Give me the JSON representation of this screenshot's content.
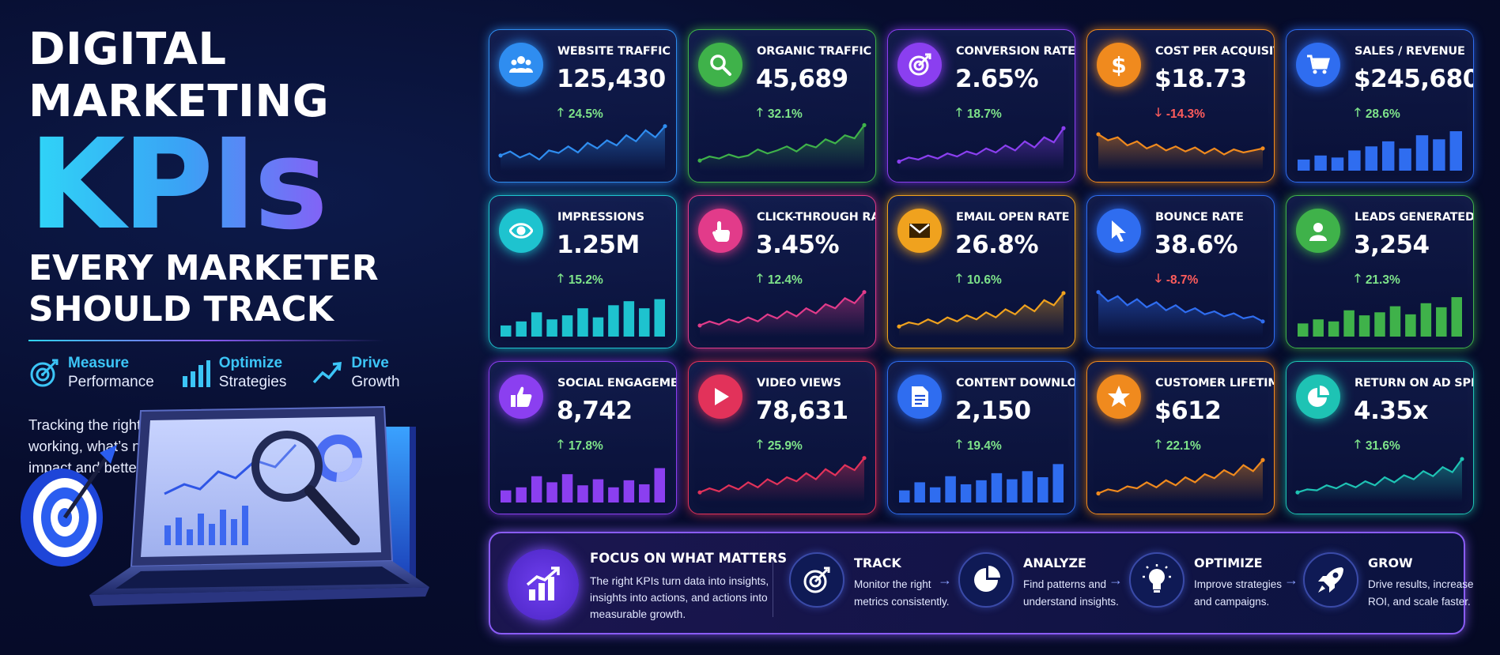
{
  "hero": {
    "title_line1": "DIGITAL MARKETING",
    "title_kpis": "KPIs",
    "title_line2a": "EVERY MARKETER",
    "title_line2b": "SHOULD TRACK",
    "pillars": [
      {
        "icon": "target-icon",
        "line1": "Measure",
        "line2": "Performance"
      },
      {
        "icon": "bar-chart-icon",
        "line1": "Optimize",
        "line2": "Strategies"
      },
      {
        "icon": "trend-arrow-icon",
        "line1": "Drive",
        "line2": "Growth"
      }
    ],
    "description": "Tracking the right KPIs helps you understand what’s working, what’s not, and where to focus for maximum impact and better ROI."
  },
  "kpis": [
    {
      "label": "WEBSITE TRAFFIC",
      "value": "125,430",
      "delta": "24.5%",
      "direction": "up",
      "icon": "users-icon",
      "accent": "#2f8df0",
      "chart": "line",
      "trend": [
        30,
        38,
        26,
        34,
        22,
        40,
        35,
        48,
        36,
        55,
        44,
        60,
        50,
        70,
        58,
        80,
        66,
        88
      ]
    },
    {
      "label": "ORGANIC TRAFFIC",
      "value": "45,689",
      "delta": "32.1%",
      "direction": "up",
      "icon": "search-icon",
      "accent": "#3fb24a",
      "chart": "line",
      "trend": [
        20,
        28,
        24,
        32,
        26,
        30,
        42,
        34,
        40,
        48,
        38,
        52,
        46,
        62,
        54,
        70,
        64,
        90
      ]
    },
    {
      "label": "CONVERSION RATE",
      "value": "2.65%",
      "delta": "18.7%",
      "direction": "up",
      "icon": "target-icon",
      "accent": "#8b3ff0",
      "chart": "line",
      "trend": [
        18,
        26,
        22,
        30,
        24,
        34,
        28,
        38,
        32,
        44,
        36,
        50,
        40,
        58,
        46,
        66,
        56,
        84
      ]
    },
    {
      "label": "COST PER ACQUISITION",
      "value": "$18.73",
      "delta": "-14.3%",
      "direction": "down",
      "icon": "dollar-icon",
      "accent": "#f08a1e",
      "chart": "line",
      "trend": [
        72,
        60,
        66,
        50,
        58,
        44,
        52,
        40,
        48,
        38,
        46,
        34,
        44,
        32,
        42,
        36,
        40,
        44
      ]
    },
    {
      "label": "SALES / REVENUE",
      "value": "$245,680",
      "delta": "28.6%",
      "direction": "up",
      "icon": "cart-icon",
      "accent": "#2f6df0",
      "chart": "bar",
      "trend": [
        22,
        30,
        26,
        40,
        48,
        58,
        44,
        70,
        62,
        78
      ]
    },
    {
      "label": "IMPRESSIONS",
      "value": "1.25M",
      "delta": "15.2%",
      "direction": "up",
      "icon": "eye-icon",
      "accent": "#1ec3cf",
      "chart": "bar",
      "trend": [
        22,
        30,
        48,
        34,
        42,
        56,
        38,
        62,
        70,
        56,
        74
      ]
    },
    {
      "label": "CLICK-THROUGH RATE",
      "value": "3.45%",
      "delta": "12.4%",
      "direction": "up",
      "icon": "pointer-hand-icon",
      "accent": "#e23b8a",
      "chart": "line",
      "trend": [
        22,
        30,
        24,
        34,
        28,
        38,
        30,
        44,
        36,
        50,
        40,
        56,
        46,
        64,
        56,
        76,
        66,
        88
      ]
    },
    {
      "label": "EMAIL OPEN RATE",
      "value": "26.8%",
      "delta": "10.6%",
      "direction": "up",
      "icon": "envelope-icon",
      "accent": "#f0a21e",
      "chart": "line",
      "trend": [
        20,
        28,
        24,
        34,
        26,
        38,
        30,
        42,
        34,
        48,
        38,
        54,
        44,
        62,
        50,
        72,
        62,
        86
      ]
    },
    {
      "label": "BOUNCE RATE",
      "value": "38.6%",
      "delta": "-8.7%",
      "direction": "down",
      "icon": "cursor-icon",
      "accent": "#2f6df0",
      "chart": "line",
      "trend": [
        88,
        70,
        80,
        62,
        74,
        58,
        68,
        52,
        62,
        48,
        56,
        44,
        50,
        40,
        46,
        36,
        40,
        30
      ]
    },
    {
      "label": "LEADS GENERATED",
      "value": "3,254",
      "delta": "21.3%",
      "direction": "up",
      "icon": "user-icon",
      "accent": "#3fb24a",
      "chart": "bar",
      "trend": [
        26,
        34,
        30,
        52,
        42,
        48,
        60,
        44,
        66,
        58,
        78
      ]
    },
    {
      "label": "SOCIAL ENGAGEMENT",
      "value": "8,742",
      "delta": "17.8%",
      "direction": "up",
      "icon": "thumbs-up-icon",
      "accent": "#8b3ff0",
      "chart": "bar",
      "trend": [
        24,
        30,
        52,
        40,
        56,
        34,
        46,
        30,
        44,
        36,
        68
      ]
    },
    {
      "label": "VIDEO VIEWS",
      "value": "78,631",
      "delta": "25.9%",
      "direction": "up",
      "icon": "play-icon",
      "accent": "#e2325a",
      "chart": "line",
      "trend": [
        20,
        28,
        22,
        34,
        26,
        40,
        30,
        46,
        36,
        50,
        42,
        58,
        46,
        66,
        54,
        74,
        64,
        88
      ]
    },
    {
      "label": "CONTENT DOWNLOADS",
      "value": "2,150",
      "delta": "19.4%",
      "direction": "up",
      "icon": "document-icon",
      "accent": "#2f6df0",
      "chart": "bar",
      "trend": [
        24,
        40,
        30,
        52,
        36,
        44,
        58,
        46,
        62,
        50,
        76
      ]
    },
    {
      "label": "CUSTOMER LIFETIME VALUE",
      "value": "$612",
      "delta": "22.1%",
      "direction": "up",
      "icon": "star-icon",
      "accent": "#f08a1e",
      "chart": "line",
      "trend": [
        18,
        26,
        22,
        32,
        28,
        40,
        30,
        44,
        34,
        50,
        40,
        56,
        48,
        64,
        54,
        74,
        62,
        84
      ]
    },
    {
      "label": "RETURN ON AD SPEND",
      "value": "4.35x",
      "delta": "31.6%",
      "direction": "up",
      "icon": "pie-chart-icon",
      "accent": "#1ec3b4",
      "chart": "line",
      "trend": [
        20,
        26,
        24,
        34,
        28,
        38,
        30,
        42,
        34,
        50,
        40,
        54,
        46,
        62,
        52,
        70,
        60,
        86
      ]
    }
  ],
  "banner": {
    "title": "FOCUS ON WHAT MATTERS",
    "text": "The right KPIs turn data into insights, insights into actions, and actions into measurable growth.",
    "steps": [
      {
        "title": "TRACK",
        "text": "Monitor the right metrics consistently.",
        "icon": "target-icon"
      },
      {
        "title": "ANALYZE",
        "text": "Find patterns and understand insights.",
        "icon": "pie-chart-icon"
      },
      {
        "title": "OPTIMIZE",
        "text": "Improve strategies and campaigns.",
        "icon": "lightbulb-icon"
      },
      {
        "title": "GROW",
        "text": "Drive results, increase ROI, and scale faster.",
        "icon": "rocket-icon"
      }
    ]
  }
}
